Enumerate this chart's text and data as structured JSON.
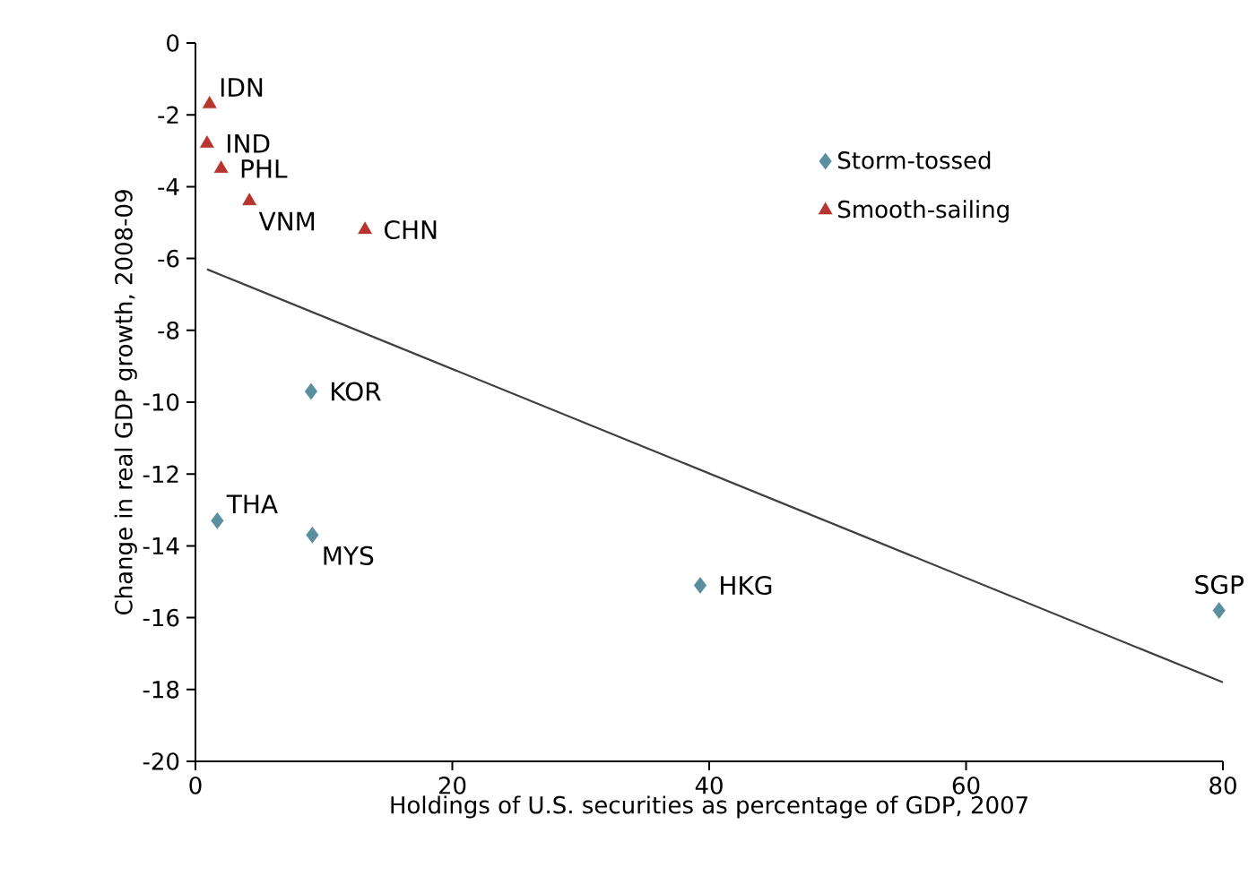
{
  "chart_data": {
    "type": "scatter",
    "xlabel": "Holdings of U.S. securities as percentage of GDP, 2007",
    "ylabel": "Change in real GDP growth, 2008-09",
    "xlim": [
      0,
      80
    ],
    "xticks": [
      0,
      20,
      40,
      60,
      80
    ],
    "ylim": [
      -20,
      0
    ],
    "yticks": [
      -20,
      -18,
      -16,
      -14,
      -12,
      -10,
      -8,
      -6,
      -4,
      -2,
      0
    ],
    "grid": false,
    "legend": "top right",
    "series": [
      {
        "name": "Storm-tossed",
        "color": "#5b8fa0",
        "marker": "diamond",
        "x": [
          9.0,
          1.7,
          9.1,
          39.3,
          79.7
        ],
        "values": [
          -9.7,
          -13.3,
          -13.7,
          -15.1,
          -15.8
        ]
      },
      {
        "name": "Smooth-sailing",
        "color": "#b8352f",
        "marker": "triangle",
        "x": [
          1.1,
          0.9,
          2.0,
          4.2,
          13.2
        ],
        "values": [
          -1.7,
          -2.8,
          -3.5,
          -4.4,
          -5.2
        ]
      },
      {
        "type": "line",
        "color": "#404040",
        "marker": "none",
        "x": [
          0.9,
          80
        ],
        "values": [
          -6.3,
          -17.8
        ]
      }
    ],
    "annotations": [
      {
        "text": "IDN",
        "x": 1.1,
        "y": -1.7
      },
      {
        "text": "IND",
        "x": 0.9,
        "y": -2.8
      },
      {
        "text": "PHL",
        "x": 2.0,
        "y": -3.5
      },
      {
        "text": "VNM",
        "x": 4.2,
        "y": -4.4
      },
      {
        "text": "CHN",
        "x": 13.2,
        "y": -5.2
      },
      {
        "text": "KOR",
        "x": 9.0,
        "y": -9.7
      },
      {
        "text": "THA",
        "x": 1.7,
        "y": -13.3
      },
      {
        "text": "MYS",
        "x": 9.1,
        "y": -13.7
      },
      {
        "text": "HKG",
        "x": 39.3,
        "y": -15.1
      },
      {
        "text": "SGP",
        "x": 79.7,
        "y": -15.8
      }
    ]
  }
}
